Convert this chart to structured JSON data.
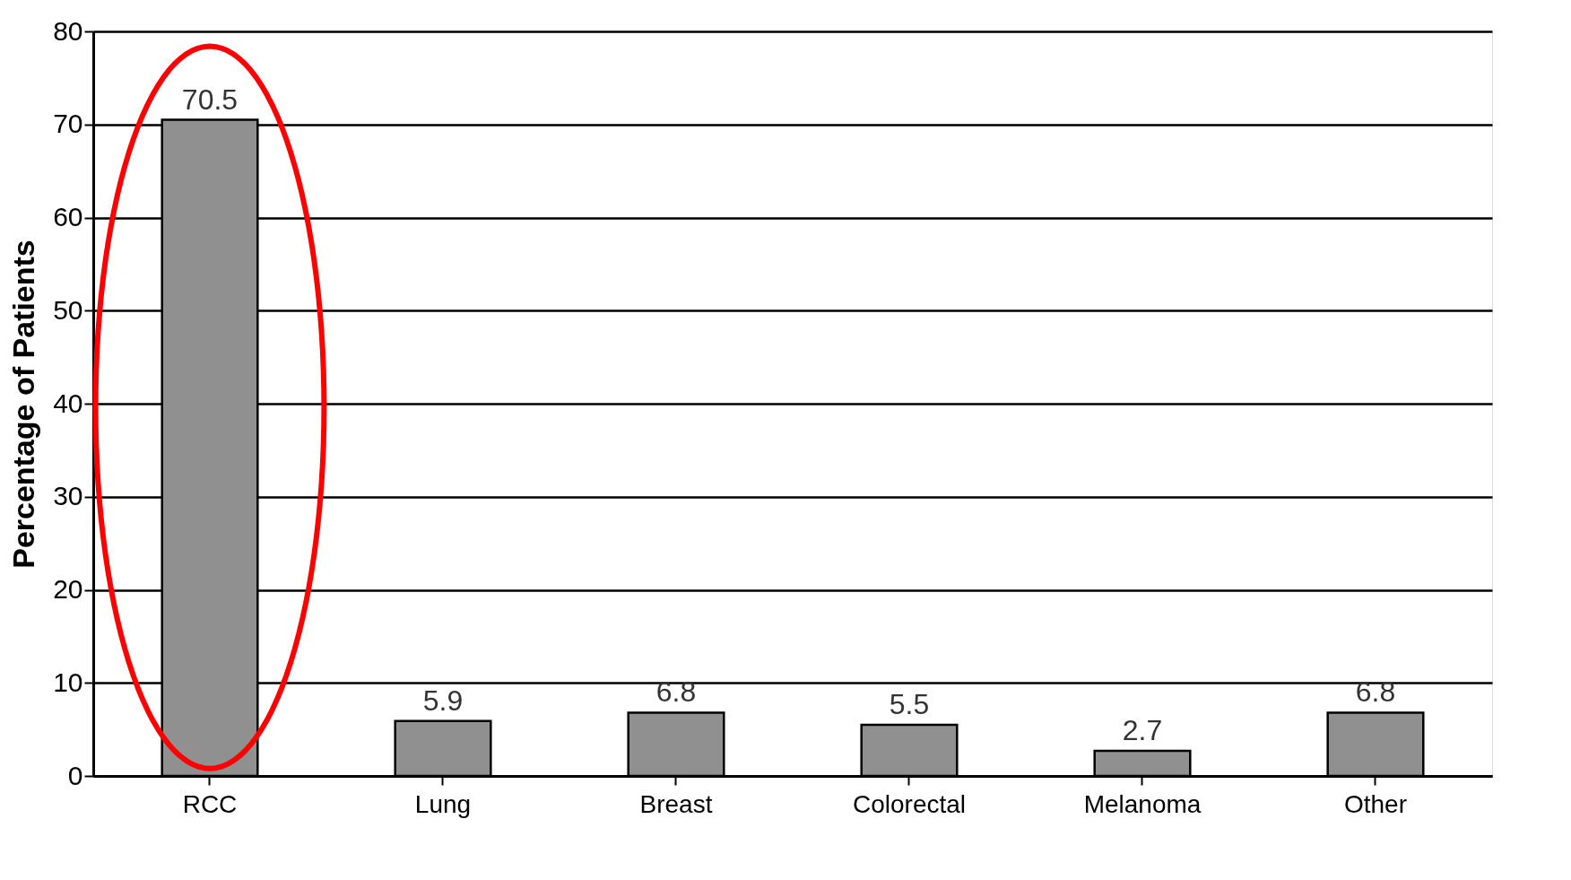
{
  "chart_data": {
    "type": "bar",
    "ylabel": "Percentage of Patients",
    "categories": [
      "RCC",
      "Lung",
      "Breast",
      "Colorectal",
      "Melanoma",
      "Other"
    ],
    "values": [
      70.5,
      5.9,
      6.8,
      5.5,
      2.7,
      6.8
    ],
    "color": "#909090",
    "ylim": [
      0,
      80
    ],
    "yticks": [
      0,
      10,
      20,
      30,
      40,
      50,
      60,
      70,
      80
    ],
    "grid": "y",
    "data_labels": true
  }
}
